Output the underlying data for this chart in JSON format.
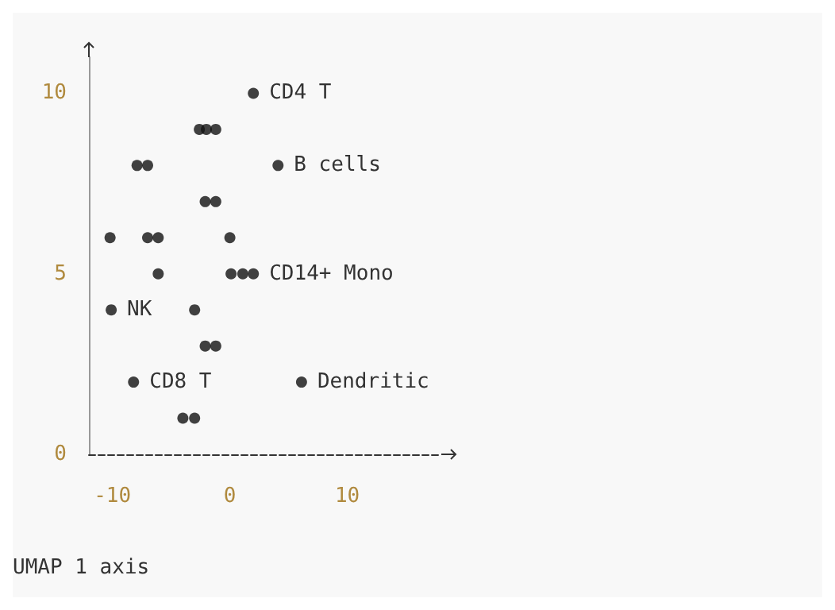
{
  "chart_data": {
    "type": "scatter",
    "xlabel": "UMAP 1 axis",
    "x": [
      2.0,
      -2.6,
      -2.0,
      -1.2,
      -7.9,
      -7.0,
      4.1,
      -2.1,
      -1.2,
      -10.2,
      -7.0,
      -6.1,
      0.0,
      -6.1,
      0.1,
      1.1,
      2.0,
      -10.1,
      -3.0,
      -2.1,
      -1.2,
      -8.2,
      6.1,
      -4.0,
      -3.0
    ],
    "values": [
      10,
      9,
      9,
      9,
      8,
      8,
      8,
      7,
      7,
      6,
      6,
      6,
      6,
      5,
      5,
      5,
      5,
      4,
      4,
      3,
      3,
      2,
      2,
      1,
      1
    ],
    "color": "#111111",
    "marker": "circle",
    "grid": false,
    "xlim": [
      -12,
      18
    ],
    "xticks": [
      -10,
      0,
      10
    ],
    "ylim": [
      0,
      11
    ],
    "yticks": [
      0,
      5,
      10
    ],
    "annotations": [
      {
        "text": "CD4 T",
        "x": 2.0,
        "y": 10
      },
      {
        "text": "B cells",
        "x": 4.1,
        "y": 8
      },
      {
        "text": "CD14+ Mono",
        "x": 2.0,
        "y": 5
      },
      {
        "text": "NK",
        "x": -10.1,
        "y": 4
      },
      {
        "text": "CD8 T",
        "x": -8.2,
        "y": 2
      },
      {
        "text": "Dendritic",
        "x": 6.1,
        "y": 2
      }
    ]
  }
}
